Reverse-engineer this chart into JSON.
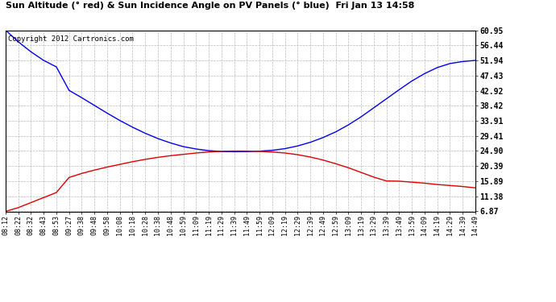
{
  "title": "Sun Altitude (° red) & Sun Incidence Angle on PV Panels (° blue)  Fri Jan 13 14:58",
  "copyright": "Copyright 2012 Cartronics.com",
  "background_color": "#ffffff",
  "plot_bg_color": "#ffffff",
  "grid_color": "#bbbbbb",
  "blue_color": "#0000ee",
  "red_color": "#dd0000",
  "yticks": [
    6.87,
    11.38,
    15.89,
    20.39,
    24.9,
    29.41,
    33.91,
    38.42,
    42.92,
    47.43,
    51.94,
    56.44,
    60.95
  ],
  "x_labels": [
    "08:12",
    "08:22",
    "08:32",
    "08:43",
    "08:53",
    "09:27",
    "09:38",
    "09:48",
    "09:58",
    "10:08",
    "10:18",
    "10:28",
    "10:38",
    "10:48",
    "10:59",
    "11:09",
    "11:19",
    "11:29",
    "11:39",
    "11:49",
    "11:59",
    "12:09",
    "12:19",
    "12:29",
    "12:39",
    "12:49",
    "12:59",
    "13:09",
    "13:19",
    "13:29",
    "13:39",
    "13:49",
    "13:59",
    "14:09",
    "14:19",
    "14:29",
    "14:39",
    "14:49"
  ],
  "blue_y": [
    60.95,
    57.5,
    54.5,
    51.94,
    50.0,
    43.0,
    40.8,
    38.5,
    36.2,
    34.0,
    32.0,
    30.2,
    28.6,
    27.3,
    26.2,
    25.5,
    25.0,
    24.75,
    24.68,
    24.72,
    24.85,
    25.1,
    25.6,
    26.4,
    27.5,
    28.9,
    30.6,
    32.7,
    35.1,
    37.8,
    40.5,
    43.2,
    45.8,
    48.0,
    49.8,
    51.0,
    51.6,
    51.94
  ],
  "red_y": [
    6.87,
    8.0,
    9.5,
    11.0,
    12.5,
    17.0,
    18.2,
    19.2,
    20.1,
    20.9,
    21.7,
    22.4,
    23.0,
    23.5,
    23.9,
    24.3,
    24.6,
    24.82,
    24.9,
    24.88,
    24.78,
    24.6,
    24.3,
    23.8,
    23.1,
    22.2,
    21.1,
    19.9,
    18.5,
    17.1,
    15.95,
    15.89,
    15.6,
    15.3,
    14.9,
    14.6,
    14.3,
    13.9
  ]
}
